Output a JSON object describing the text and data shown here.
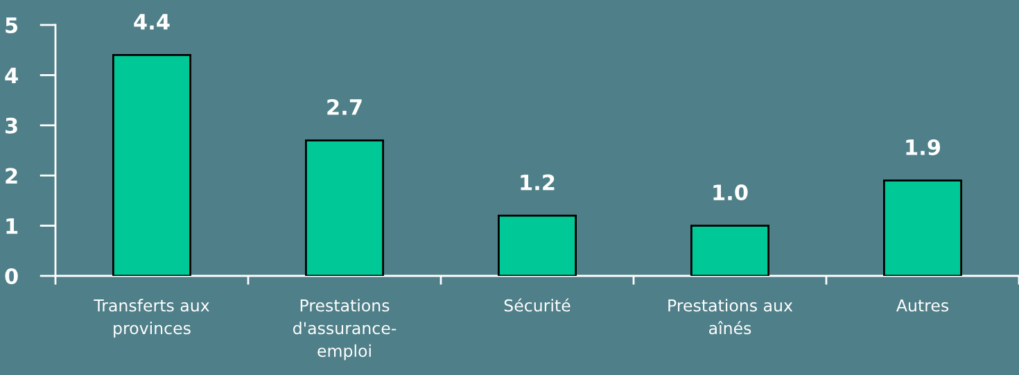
{
  "chart_data": {
    "type": "bar",
    "categories": [
      "Transferts aux\nprovinces",
      "Prestations\nd'assurance-\nemploi",
      "Sécurité",
      "Prestations aux\naînés",
      "Autres"
    ],
    "values": [
      4.4,
      2.7,
      1.2,
      1.0,
      1.9
    ],
    "value_labels": [
      "4.4",
      "2.7",
      "1.2",
      "1.0",
      "1.9"
    ],
    "color": "#00c896",
    "ylim": [
      0,
      5
    ],
    "yticks": [
      0,
      1,
      2,
      3,
      4,
      5
    ],
    "grid": false
  }
}
